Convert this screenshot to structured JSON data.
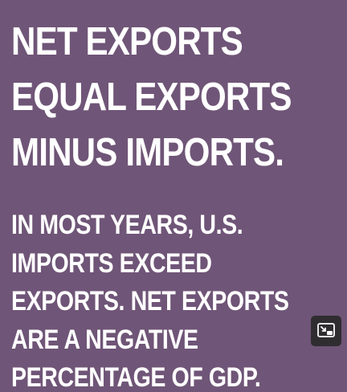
{
  "slide": {
    "background_color": "#6f5577",
    "text_color": "#ffffff",
    "heading_lines": [
      "NET EXPORTS",
      "EQUAL EXPORTS",
      "MINUS IMPORTS."
    ],
    "body_lines": [
      "IN MOST YEARS, U.S.",
      "IMPORTS EXCEED",
      "EXPORTS. NET EXPORTS",
      "ARE A NEGATIVE",
      "PERCENTAGE OF GDP."
    ]
  },
  "controls": {
    "pip_button_icon": "picture-in-picture-icon"
  }
}
